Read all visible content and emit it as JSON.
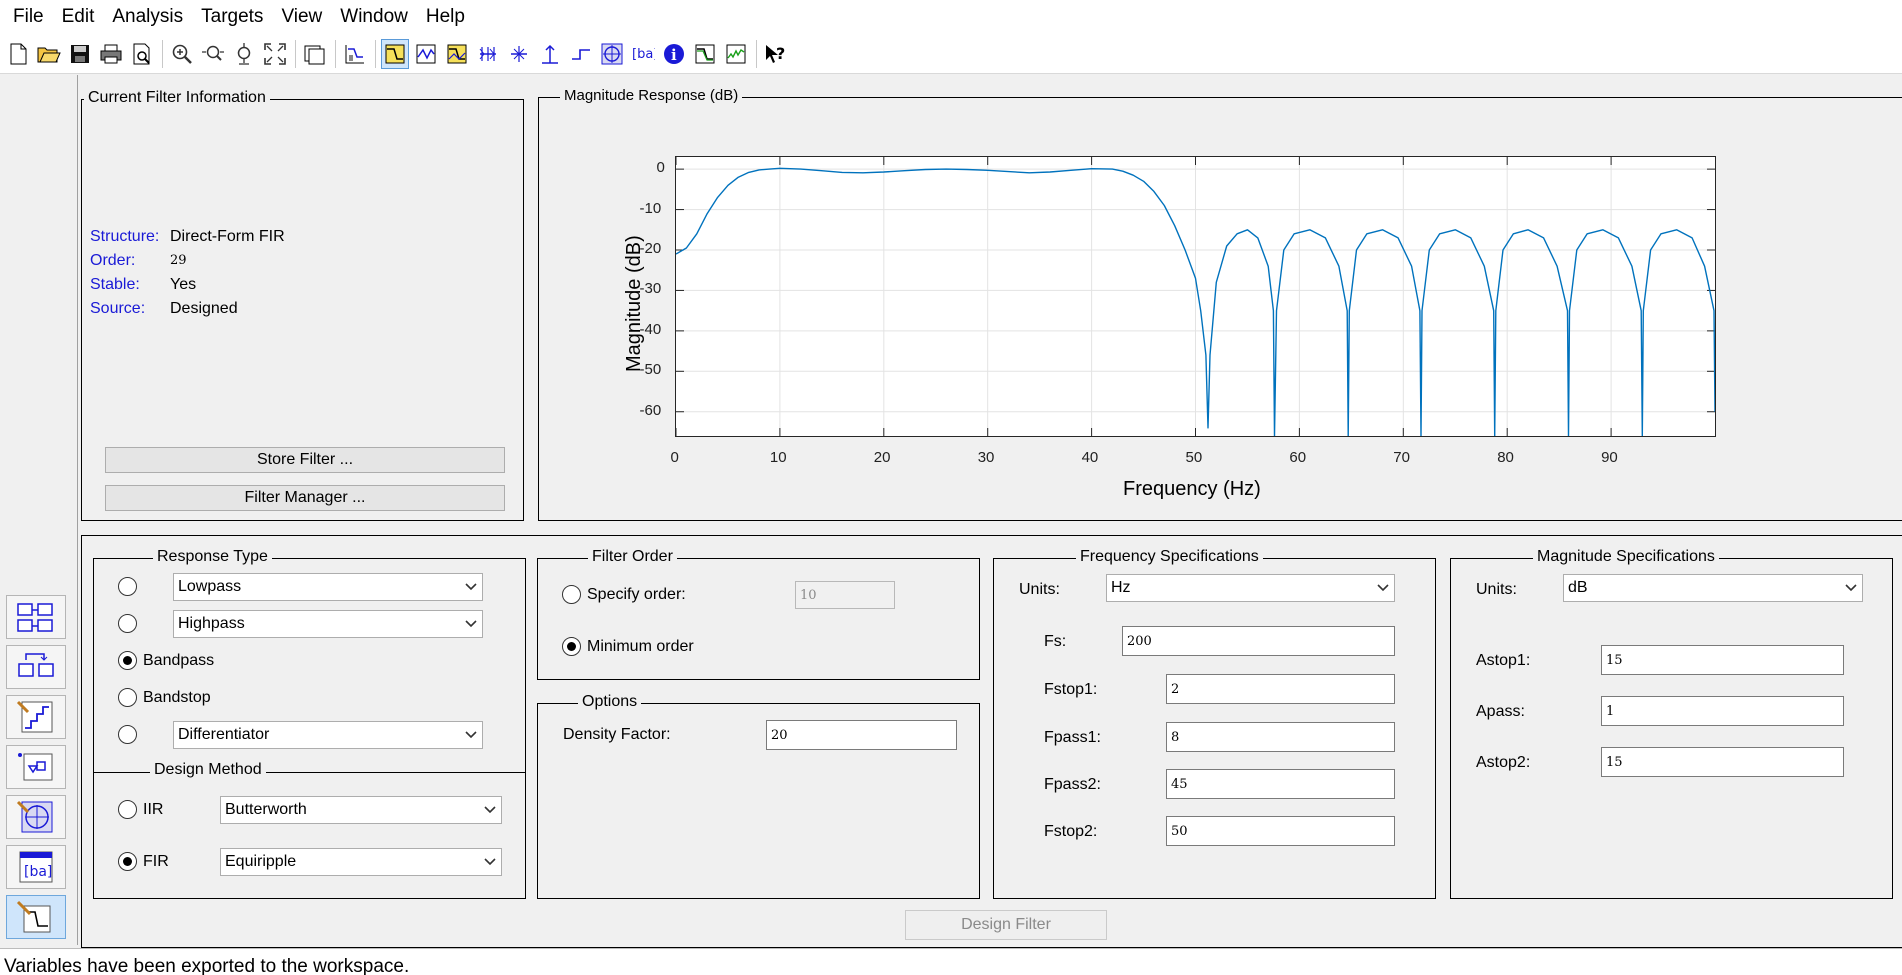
{
  "menu": [
    "File",
    "Edit",
    "Analysis",
    "Targets",
    "View",
    "Window",
    "Help"
  ],
  "current_filter": {
    "title": "Current Filter Information",
    "structure_key": "Structure:",
    "structure_val": "Direct-Form FIR",
    "order_key": "Order:",
    "order_val": "29",
    "stable_key": "Stable:",
    "stable_val": "Yes",
    "source_key": "Source:",
    "source_val": "Designed",
    "store_button": "Store Filter ...",
    "manager_button": "Filter Manager ..."
  },
  "plot": {
    "title": "Magnitude Response (dB)",
    "xlabel": "Frequency (Hz)",
    "ylabel": "Magnitude (dB)"
  },
  "chart_data": {
    "type": "line",
    "title": "Magnitude Response (dB)",
    "xlabel": "Frequency (Hz)",
    "ylabel": "Magnitude (dB)",
    "xlim": [
      0,
      100
    ],
    "ylim": [
      -66,
      3
    ],
    "xticks": [
      "0",
      "10",
      "20",
      "30",
      "40",
      "50",
      "60",
      "70",
      "80",
      "90"
    ],
    "yticks": [
      "0",
      "-10",
      "-20",
      "-30",
      "-40",
      "-50",
      "-60"
    ],
    "grid": true,
    "color": "#0072bd",
    "series": [
      {
        "x": [
          0,
          1,
          2,
          3,
          4,
          5,
          6,
          7,
          8,
          9,
          10,
          12,
          14,
          16,
          18,
          20,
          22,
          24,
          26,
          28,
          30,
          32,
          34,
          36,
          38,
          40,
          42,
          43,
          44,
          45,
          46,
          47,
          48,
          49,
          50,
          50.5,
          51,
          51.2,
          51.4,
          52,
          53,
          54,
          55,
          56,
          57,
          57.5,
          57.6,
          57.8,
          58.5,
          59.5,
          61,
          62.5,
          63.8,
          64.6,
          64.7,
          64.8,
          65.5,
          66.5,
          68,
          69.5,
          70.8,
          71.6,
          71.7,
          71.8,
          72.5,
          73.5,
          75,
          76.5,
          77.8,
          78.7,
          78.8,
          78.9,
          79.6,
          80.6,
          82,
          83.5,
          84.8,
          85.8,
          85.9,
          86,
          86.7,
          87.7,
          89.2,
          90.7,
          92,
          92.9,
          93,
          93.1,
          93.8,
          94.8,
          96.3,
          97.8,
          99,
          99.9,
          100
        ],
        "y": [
          -21,
          -19.5,
          -16,
          -11,
          -7,
          -4,
          -2,
          -0.8,
          -0.2,
          0,
          0.2,
          0,
          -0.4,
          -0.8,
          -0.9,
          -0.7,
          -0.4,
          -0.1,
          0,
          -0.1,
          -0.3,
          -0.6,
          -0.9,
          -0.7,
          -0.3,
          0.1,
          0,
          -0.5,
          -1.5,
          -3,
          -5.5,
          -9,
          -14,
          -20,
          -27,
          -35,
          -46,
          -64,
          -46,
          -28,
          -19,
          -16,
          -15,
          -17,
          -24,
          -35,
          -66,
          -35,
          -20,
          -16,
          -15,
          -17,
          -24,
          -35,
          -66,
          -35,
          -20,
          -16,
          -15,
          -17,
          -24,
          -35,
          -66,
          -35,
          -20,
          -16,
          -15,
          -17,
          -24,
          -35,
          -66,
          -35,
          -20,
          -16,
          -15,
          -17,
          -24,
          -35,
          -66,
          -35,
          -20,
          -16,
          -15,
          -17,
          -24,
          -35,
          -66,
          -35,
          -20,
          -16,
          -15,
          -17,
          -24,
          -35,
          -60
        ]
      }
    ]
  },
  "response_type": {
    "title": "Response Type",
    "lowpass": "Lowpass",
    "highpass": "Highpass",
    "bandpass": "Bandpass",
    "bandstop": "Bandstop",
    "differentiator": "Differentiator",
    "selected": "Bandpass"
  },
  "design_method": {
    "title": "Design Method",
    "iir_label": "IIR",
    "iir_select": "Butterworth",
    "fir_label": "FIR",
    "fir_select": "Equiripple",
    "selected": "FIR"
  },
  "filter_order": {
    "title": "Filter Order",
    "specify_label": "Specify order:",
    "specify_value": "10",
    "minimum_label": "Minimum order",
    "selected": "Minimum order"
  },
  "options": {
    "title": "Options",
    "density_label": "Density Factor:",
    "density_value": "20"
  },
  "frequency_specs": {
    "title": "Frequency Specifications",
    "units_label": "Units:",
    "units_value": "Hz",
    "fs_label": "Fs:",
    "fs_value": "200",
    "fstop1_label": "Fstop1:",
    "fstop1_value": "2",
    "fpass1_label": "Fpass1:",
    "fpass1_value": "8",
    "fpass2_label": "Fpass2:",
    "fpass2_value": "45",
    "fstop2_label": "Fstop2:",
    "fstop2_value": "50"
  },
  "magnitude_specs": {
    "title": "Magnitude Specifications",
    "units_label": "Units:",
    "units_value": "dB",
    "astop1_label": "Astop1:",
    "astop1_value": "15",
    "apass_label": "Apass:",
    "apass_value": "1",
    "astop2_label": "Astop2:",
    "astop2_value": "15"
  },
  "design_button": "Design Filter",
  "status_text": "Variables have been exported to the workspace."
}
